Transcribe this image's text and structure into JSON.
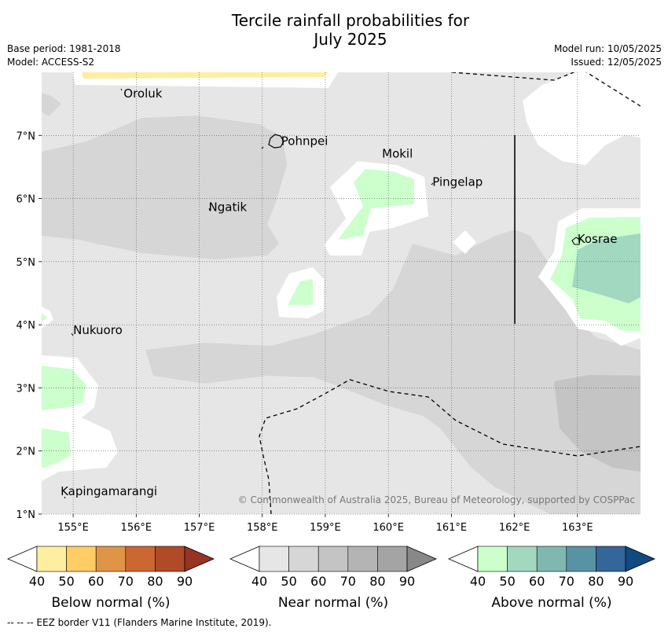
{
  "title_line1": "Tercile rainfall probabilities for",
  "title_line2": "July 2025",
  "meta_left": [
    "Base period: 1981-2018",
    "Model: ACCESS-S2"
  ],
  "meta_right": [
    "Model run: 10/05/2025",
    "Issued: 12/05/2025"
  ],
  "map": {
    "lon_range": [
      154.5,
      164.0
    ],
    "lat_range": [
      1.0,
      8.0
    ],
    "lon_ticks": [
      "155°E",
      "156°E",
      "157°E",
      "158°E",
      "159°E",
      "160°E",
      "161°E",
      "162°E",
      "163°E"
    ],
    "lat_ticks": [
      "1°N",
      "2°N",
      "3°N",
      "4°N",
      "5°N",
      "6°N",
      "7°N"
    ],
    "places": [
      {
        "name": "Oroluk",
        "lon": 155.8,
        "lat": 7.6
      },
      {
        "name": "Pohnpei",
        "lon": 158.3,
        "lat": 6.85
      },
      {
        "name": "Mokil",
        "lon": 159.9,
        "lat": 6.65
      },
      {
        "name": "Pingelap",
        "lon": 160.7,
        "lat": 6.2
      },
      {
        "name": "Ngatik",
        "lon": 157.15,
        "lat": 5.8
      },
      {
        "name": "Kosrae",
        "lon": 163.0,
        "lat": 5.3
      },
      {
        "name": "Nukuoro",
        "lon": 155.0,
        "lat": 3.85
      },
      {
        "name": "Kapingamarangi",
        "lon": 154.8,
        "lat": 1.3
      }
    ],
    "copyright": "© Commonwealth of Australia 2025, Bureau of Meteorology, supported by COSPPac"
  },
  "colorbars": [
    {
      "label": "Below normal (%)",
      "ticks": [
        "40",
        "50",
        "60",
        "70",
        "80",
        "90"
      ],
      "colors": [
        "#ffffff",
        "#ffeea0",
        "#ffcc66",
        "#e09448",
        "#cc6633",
        "#b04a28",
        "#993322"
      ]
    },
    {
      "label": "Near normal (%)",
      "ticks": [
        "40",
        "50",
        "60",
        "70",
        "80",
        "90"
      ],
      "colors": [
        "#ffffff",
        "#e6e6e6",
        "#d6d6d6",
        "#c4c4c4",
        "#b4b4b4",
        "#a4a4a4",
        "#888888"
      ]
    },
    {
      "label": "Above normal (%)",
      "ticks": [
        "40",
        "50",
        "60",
        "70",
        "80",
        "90"
      ],
      "colors": [
        "#ffffff",
        "#ccffcc",
        "#a2d8c0",
        "#80b8b0",
        "#5893a4",
        "#336699",
        "#124a80"
      ]
    }
  ],
  "footnote": "--  --  -- EEZ border V11 (Flanders Marine Institute, 2019)."
}
